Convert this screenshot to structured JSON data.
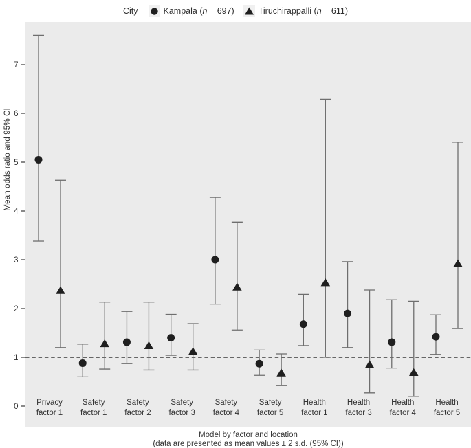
{
  "legend": {
    "title": "City",
    "items": [
      {
        "marker": "circle",
        "name": "Kampala",
        "n": "697"
      },
      {
        "marker": "triangle",
        "name": "Tiruchirappalli",
        "n": "611"
      }
    ]
  },
  "y_axis": {
    "title": "Mean odds ratio and 95% CI",
    "ticks": [
      0,
      1,
      2,
      3,
      4,
      5,
      6,
      7
    ]
  },
  "x_axis": {
    "title_line1": "Model by factor and location",
    "title_line2": "(data are presented as mean values ± 2 s.d. (95% CI))"
  },
  "reference_line": {
    "value": 1
  },
  "colors": {
    "panel_bg": "#ebebeb",
    "marker": "#1f1f1f",
    "whisker": "#6e6e6e",
    "ref_line": "#3a3a3a",
    "text": "#333333",
    "legend_key_bg": "#f0f0f0"
  },
  "chart_data": {
    "type": "scatter",
    "subtype": "errorbar_forest_plot",
    "error_bars": "95% CI (mean ± 2 s.d.)",
    "title": "",
    "xlabel": "Model by factor and location",
    "ylabel": "Mean odds ratio and 95% CI",
    "ylim": [
      0,
      7.7
    ],
    "grid": false,
    "legend_position": "top",
    "reference_line_y": 1,
    "categories": [
      "Privacy factor 1",
      "Safety factor 1",
      "Safety factor 2",
      "Safety factor 3",
      "Safety factor 4",
      "Safety factor 5",
      "Health factor 1",
      "Health factor 3",
      "Health factor 4",
      "Health factor 5"
    ],
    "series": [
      {
        "name": "Kampala (n = 697)",
        "marker": "circle",
        "values": [
          {
            "mean": 5.05,
            "lo": 3.38,
            "hi": 7.6
          },
          {
            "mean": 0.88,
            "lo": 0.6,
            "hi": 1.27
          },
          {
            "mean": 1.31,
            "lo": 0.87,
            "hi": 1.94
          },
          {
            "mean": 1.4,
            "lo": 1.04,
            "hi": 1.88
          },
          {
            "mean": 3.0,
            "lo": 2.09,
            "hi": 4.28
          },
          {
            "mean": 0.87,
            "lo": 0.63,
            "hi": 1.15
          },
          {
            "mean": 1.68,
            "lo": 1.24,
            "hi": 2.29
          },
          {
            "mean": 1.9,
            "lo": 1.2,
            "hi": 2.96
          },
          {
            "mean": 1.31,
            "lo": 0.78,
            "hi": 2.18
          },
          {
            "mean": 1.42,
            "lo": 1.06,
            "hi": 1.87
          }
        ]
      },
      {
        "name": "Tiruchirappalli (n = 611)",
        "marker": "triangle",
        "values": [
          {
            "mean": 2.37,
            "lo": 1.2,
            "hi": 4.63
          },
          {
            "mean": 1.28,
            "lo": 0.76,
            "hi": 2.13
          },
          {
            "mean": 1.24,
            "lo": 0.74,
            "hi": 2.13
          },
          {
            "mean": 1.12,
            "lo": 0.74,
            "hi": 1.69
          },
          {
            "mean": 2.44,
            "lo": 1.56,
            "hi": 3.77
          },
          {
            "mean": 0.68,
            "lo": 0.42,
            "hi": 1.07
          },
          {
            "mean": 2.53,
            "lo": 1.0,
            "hi": 6.29
          },
          {
            "mean": 0.85,
            "lo": 0.27,
            "hi": 2.38
          },
          {
            "mean": 0.69,
            "lo": 0.2,
            "hi": 2.15
          },
          {
            "mean": 2.92,
            "lo": 1.59,
            "hi": 5.41
          }
        ]
      }
    ]
  }
}
